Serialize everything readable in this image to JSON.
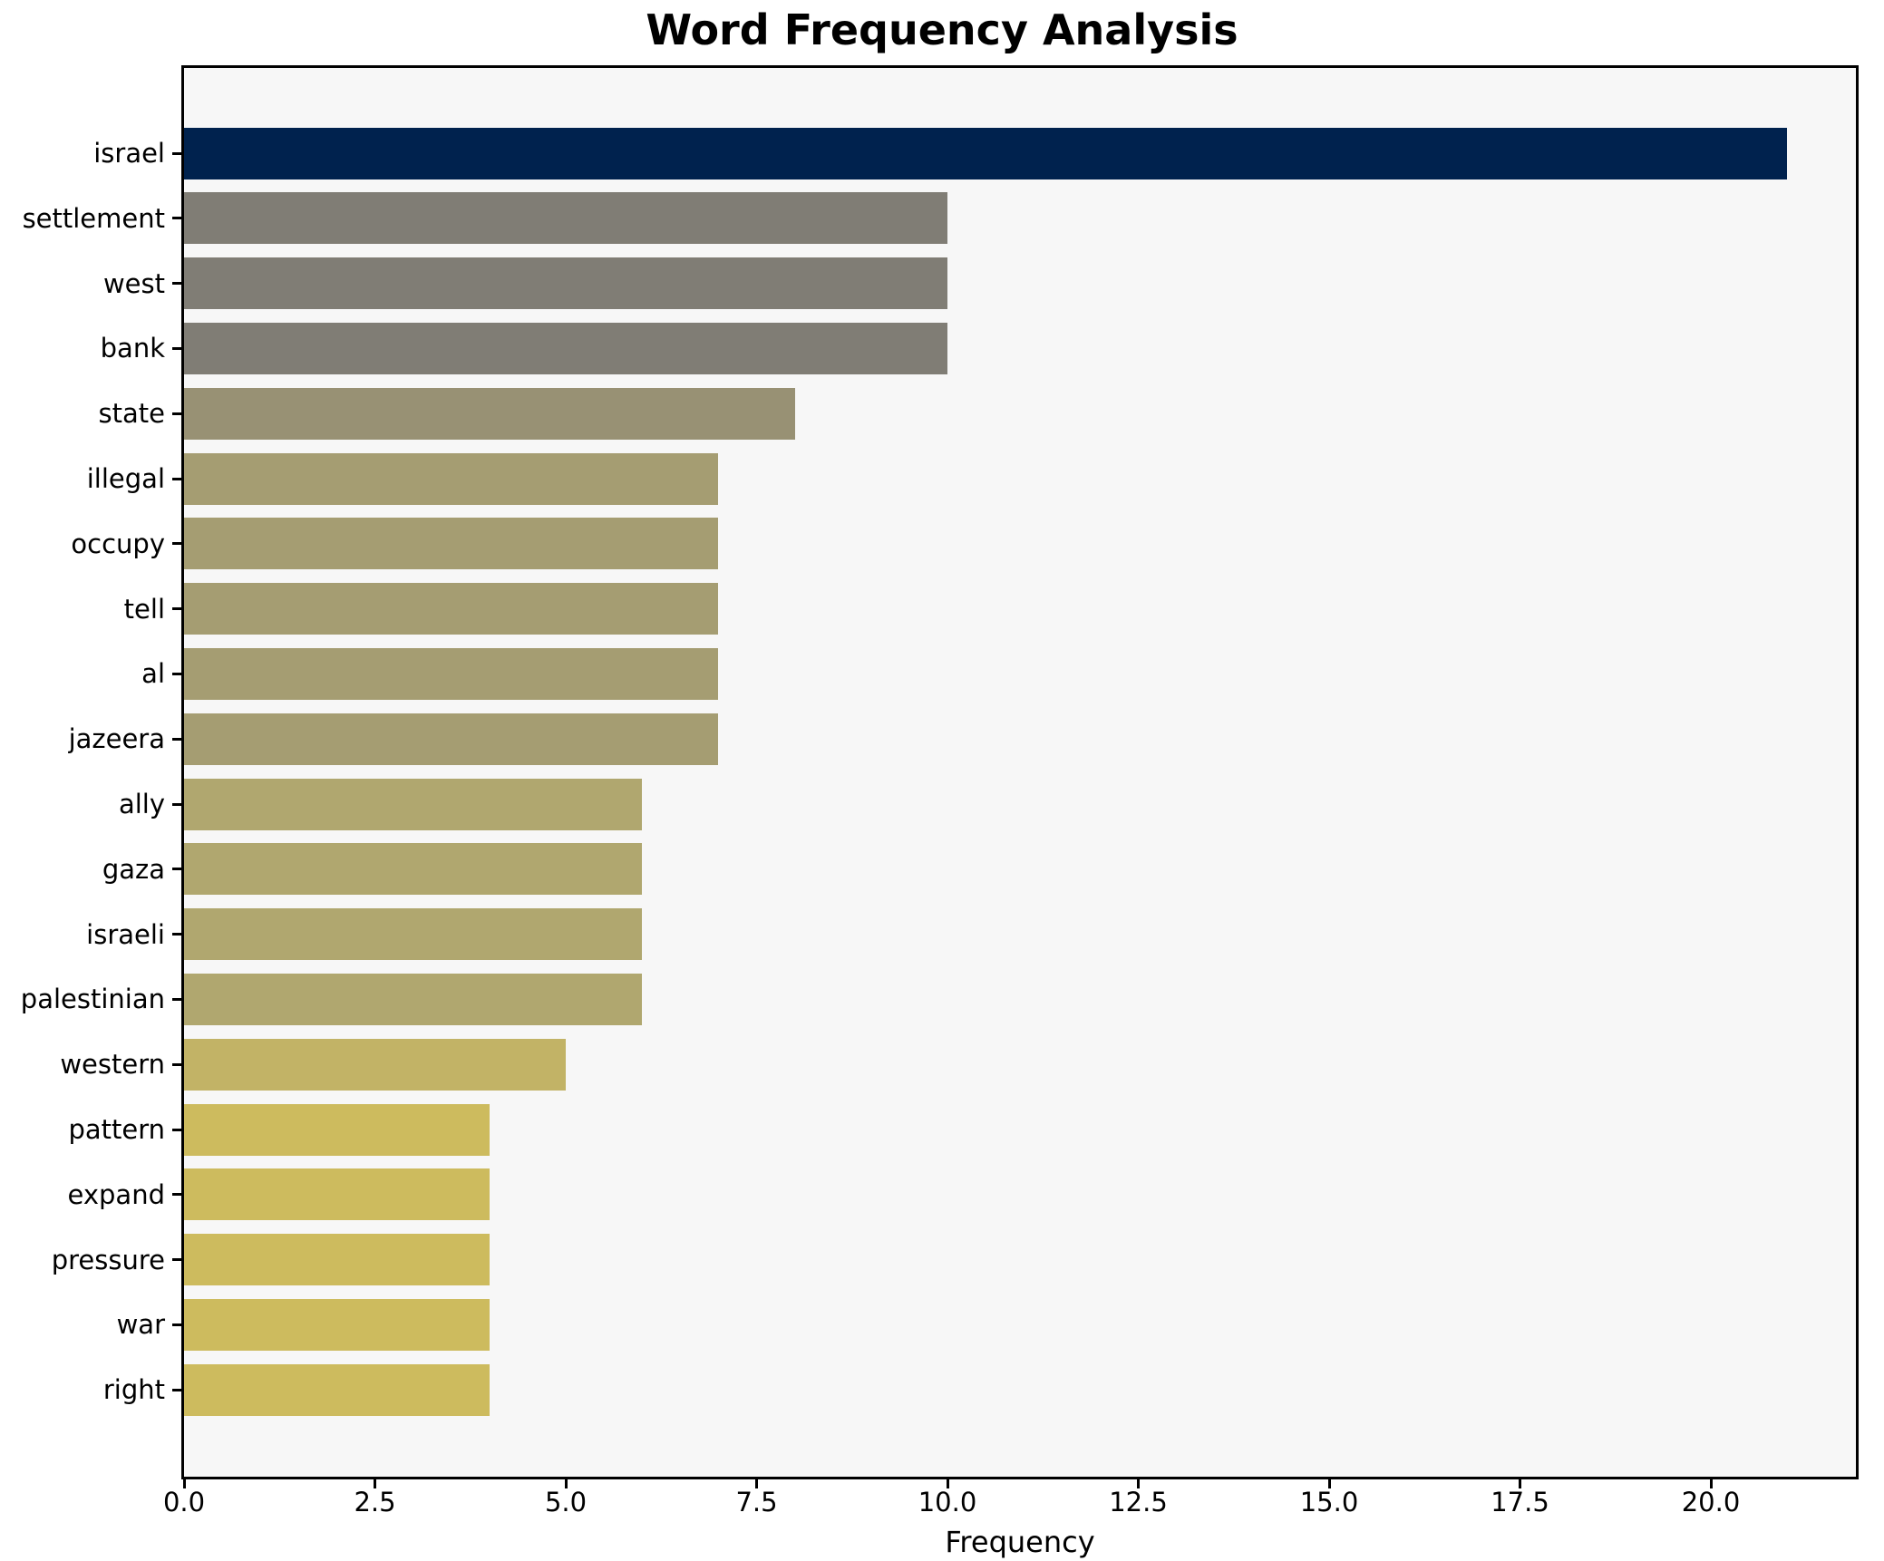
{
  "title": "Word Frequency Analysis",
  "chart_data": {
    "type": "bar",
    "orientation": "horizontal",
    "title": "Word Frequency Analysis",
    "xlabel": "Frequency",
    "ylabel": "",
    "categories": [
      "israel",
      "settlement",
      "west",
      "bank",
      "state",
      "illegal",
      "occupy",
      "tell",
      "al",
      "jazeera",
      "ally",
      "gaza",
      "israeli",
      "palestinian",
      "western",
      "pattern",
      "expand",
      "pressure",
      "war",
      "right"
    ],
    "values": [
      21,
      10,
      10,
      10,
      8,
      7,
      7,
      7,
      7,
      7,
      6,
      6,
      6,
      6,
      5,
      4,
      4,
      4,
      4,
      4
    ],
    "bar_colors": [
      "#00224e",
      "#807d75",
      "#807d75",
      "#807d75",
      "#989174",
      "#a59d72",
      "#a59d72",
      "#a59d72",
      "#a59d72",
      "#a59d72",
      "#b0a76f",
      "#b0a76f",
      "#b0a76f",
      "#b0a76f",
      "#c2b366",
      "#cdbb5e",
      "#cdbb5e",
      "#cdbb5e",
      "#cdbb5e",
      "#cdbb5e"
    ],
    "xlim": [
      0,
      21.9
    ],
    "x_ticks": [
      0.0,
      2.5,
      5.0,
      7.5,
      10.0,
      12.5,
      15.0,
      17.5,
      20.0
    ],
    "x_tick_labels": [
      "0.0",
      "2.5",
      "5.0",
      "7.5",
      "10.0",
      "12.5",
      "15.0",
      "17.5",
      "20.0"
    ],
    "grid": false,
    "legend": null,
    "plot_bg": "#f7f7f7",
    "figure_bg": "#ffffff",
    "spine_color": "#000000",
    "text_color": "#000000"
  }
}
